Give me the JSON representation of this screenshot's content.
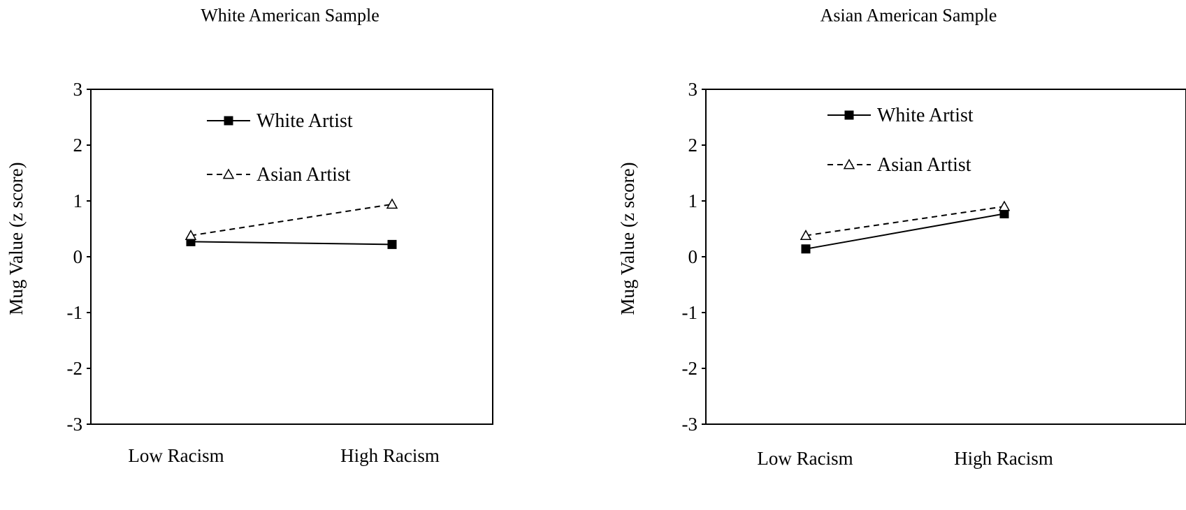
{
  "chart_data": [
    {
      "type": "line",
      "title": "White American Sample",
      "xlabel": "",
      "ylabel": "Mug Value (z score)",
      "categories": [
        "Low Racism",
        "High Racism"
      ],
      "ylim": [
        -3,
        3
      ],
      "yticks": [
        "3",
        "2",
        "1",
        "0",
        "-1",
        "-2",
        "-3"
      ],
      "grid": false,
      "legend_position": "top-center",
      "series": [
        {
          "name": "White Artist",
          "values": [
            0.27,
            0.22
          ],
          "style": "solid",
          "marker": "filled-square"
        },
        {
          "name": "Asian Artist",
          "values": [
            0.38,
            0.94
          ],
          "style": "dashed",
          "marker": "open-triangle"
        }
      ]
    },
    {
      "type": "line",
      "title": "Asian American Sample",
      "xlabel": "",
      "ylabel": "Mug Value (z score)",
      "categories": [
        "Low Racism",
        "High Racism"
      ],
      "ylim": [
        -3,
        3
      ],
      "yticks": [
        "3",
        "2",
        "1",
        "0",
        "-1",
        "-2",
        "-3"
      ],
      "grid": false,
      "legend_position": "top-center",
      "series": [
        {
          "name": "White Artist",
          "values": [
            0.14,
            0.77
          ],
          "style": "solid",
          "marker": "filled-square"
        },
        {
          "name": "Asian Artist",
          "values": [
            0.38,
            0.9
          ],
          "style": "dashed",
          "marker": "open-triangle"
        }
      ]
    }
  ],
  "colors": {
    "line": "#000000",
    "background": "#ffffff"
  }
}
